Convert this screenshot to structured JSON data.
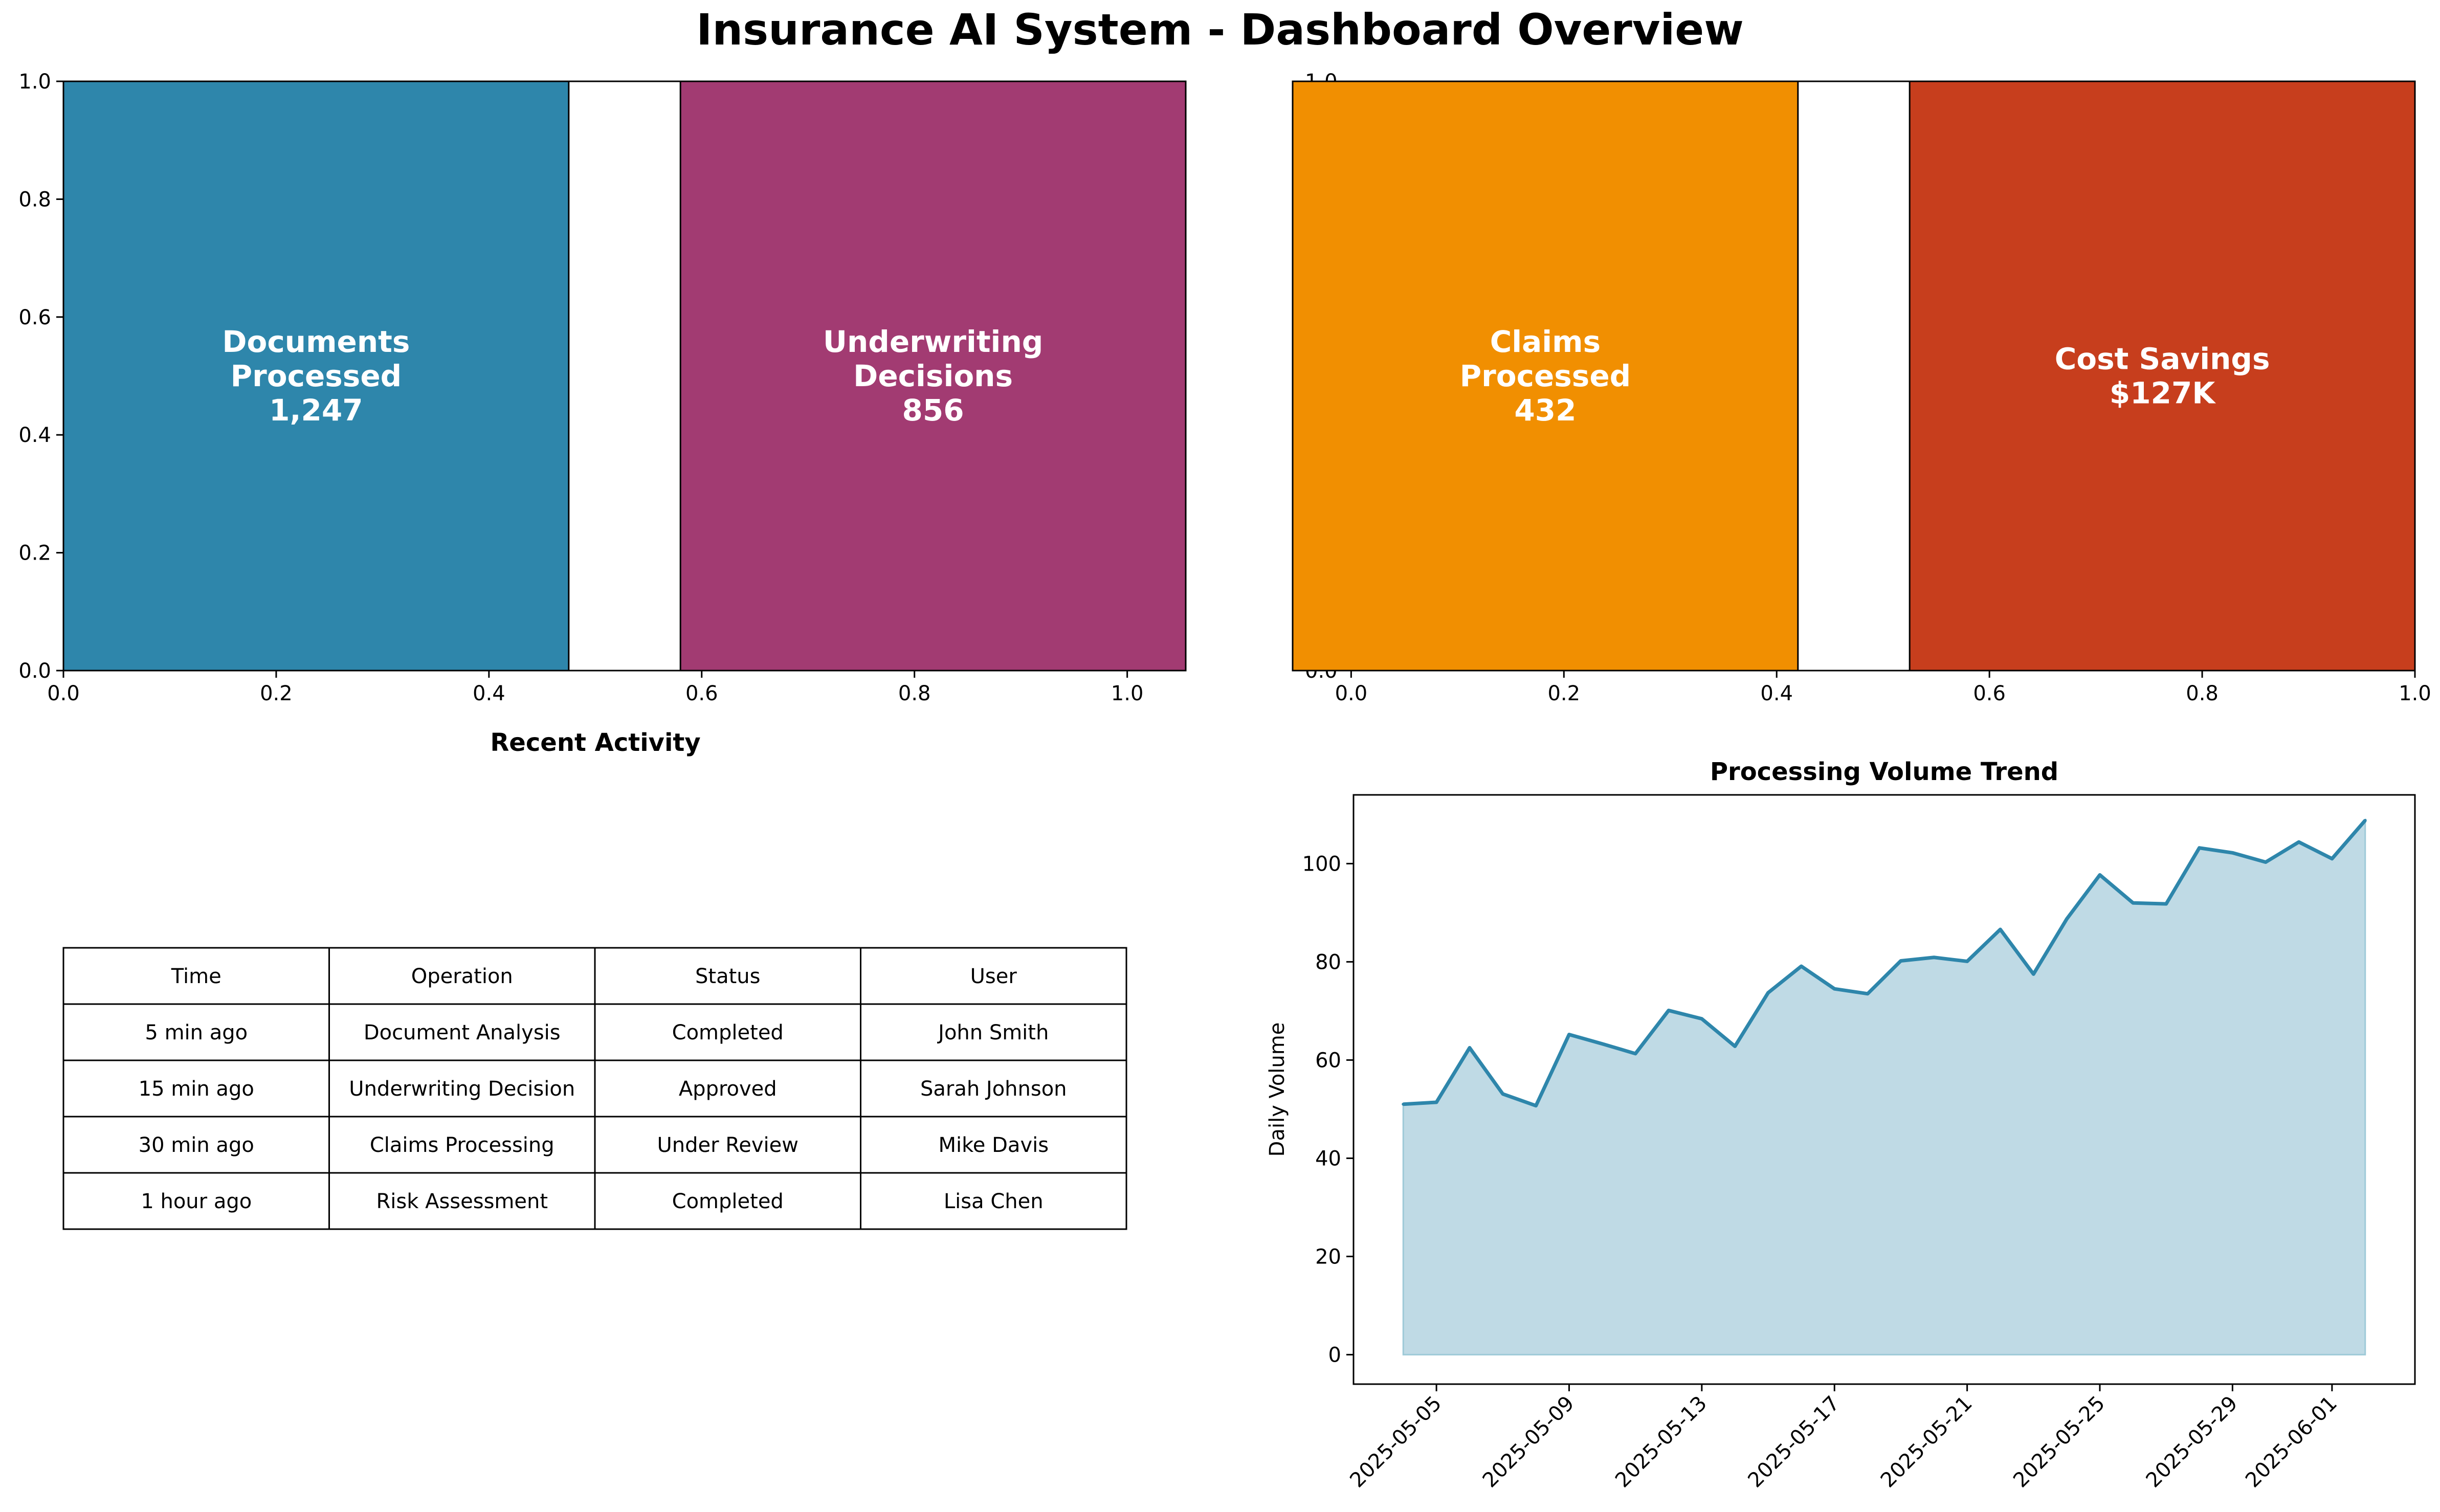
{
  "title": "Insurance AI System - Dashboard Overview",
  "colors": {
    "documents": "#2E86AB",
    "underwriting": "#A23B72",
    "claims": "#F18F01",
    "savings": "#C73E1D",
    "trend_line": "#2E86AB",
    "trend_fill": "#BFDAE5"
  },
  "chart_data": [
    {
      "type": "bar",
      "panel": "metrics-left",
      "bars": [
        {
          "label_lines": [
            "Documents",
            "Processed",
            "1,247"
          ],
          "x_start": 0.0,
          "x_end": 0.475,
          "height": 1.0,
          "color_key": "documents"
        },
        {
          "label_lines": [
            "Underwriting",
            "Decisions",
            "856"
          ],
          "x_start": 0.58,
          "x_end": 1.055,
          "height": 1.0,
          "color_key": "underwriting"
        }
      ],
      "xlim": [
        0.0,
        1.055
      ],
      "ylim": [
        0.0,
        1.0
      ],
      "xticks": [
        "0.0",
        "0.2",
        "0.4",
        "0.6",
        "0.8",
        "1.0"
      ],
      "xtick_values": [
        0.0,
        0.2,
        0.4,
        0.6,
        0.8,
        1.0
      ],
      "yticks": [
        "0.0",
        "0.2",
        "0.4",
        "0.6",
        "0.8",
        "1.0"
      ],
      "ytick_values": [
        0.0,
        0.2,
        0.4,
        0.6,
        0.8,
        1.0
      ]
    },
    {
      "type": "bar",
      "panel": "metrics-right",
      "bars": [
        {
          "label_lines": [
            "Claims",
            "Processed",
            "432"
          ],
          "x_start": -0.055,
          "x_end": 0.42,
          "height": 1.0,
          "color_key": "claims"
        },
        {
          "label_lines": [
            "Cost Savings",
            "$127K"
          ],
          "x_start": 0.525,
          "x_end": 1.0,
          "height": 1.0,
          "color_key": "savings"
        }
      ],
      "xlim": [
        -0.055,
        1.0
      ],
      "ylim": [
        0.0,
        1.0
      ],
      "xticks": [
        "0.0",
        "0.2",
        "0.4",
        "0.6",
        "0.8",
        "1.0"
      ],
      "xtick_values": [
        0.0,
        0.2,
        0.4,
        0.6,
        0.8,
        1.0
      ],
      "yticks_partial": [
        "1.0",
        "0.0"
      ]
    },
    {
      "type": "table",
      "title": "Recent Activity",
      "columns": [
        "Time",
        "Operation",
        "Status",
        "User"
      ],
      "rows": [
        [
          "5 min ago",
          "Document Analysis",
          "Completed",
          "John Smith"
        ],
        [
          "15 min ago",
          "Underwriting Decision",
          "Approved",
          "Sarah Johnson"
        ],
        [
          "30 min ago",
          "Claims Processing",
          "Under Review",
          "Mike Davis"
        ],
        [
          "1 hour ago",
          "Risk Assessment",
          "Completed",
          "Lisa Chen"
        ]
      ]
    },
    {
      "type": "area",
      "title": "Processing Volume Trend",
      "ylabel": "Daily Volume",
      "xlabel": "",
      "start_date": "2025-05-04",
      "x": [
        "2025-05-04",
        "2025-05-05",
        "2025-05-06",
        "2025-05-07",
        "2025-05-08",
        "2025-05-09",
        "2025-05-10",
        "2025-05-11",
        "2025-05-12",
        "2025-05-13",
        "2025-05-14",
        "2025-05-15",
        "2025-05-16",
        "2025-05-17",
        "2025-05-18",
        "2025-05-19",
        "2025-05-20",
        "2025-05-21",
        "2025-05-22",
        "2025-05-23",
        "2025-05-24",
        "2025-05-25",
        "2025-05-26",
        "2025-05-27",
        "2025-05-28",
        "2025-05-29",
        "2025-05-30",
        "2025-05-31",
        "2025-06-01",
        "2025-06-02"
      ],
      "values": [
        51.0,
        51.4,
        62.5,
        53.1,
        50.7,
        65.2,
        63.3,
        61.3,
        70.1,
        68.4,
        62.8,
        73.7,
        79.1,
        74.5,
        73.5,
        80.2,
        80.9,
        80.1,
        86.6,
        77.5,
        88.7,
        97.7,
        92.0,
        91.8,
        103.2,
        102.2,
        100.3,
        104.4,
        101.0,
        108.8
      ],
      "ylim": [
        -6,
        114
      ],
      "yticks": [
        0,
        20,
        40,
        60,
        80,
        100
      ],
      "xtick_labels": [
        "2025-05-05",
        "2025-05-09",
        "2025-05-13",
        "2025-05-17",
        "2025-05-21",
        "2025-05-25",
        "2025-05-29",
        "2025-06-01"
      ],
      "xtick_dates": [
        "2025-05-05",
        "2025-05-09",
        "2025-05-13",
        "2025-05-17",
        "2025-05-21",
        "2025-05-25",
        "2025-05-29",
        "2025-06-01"
      ]
    }
  ]
}
